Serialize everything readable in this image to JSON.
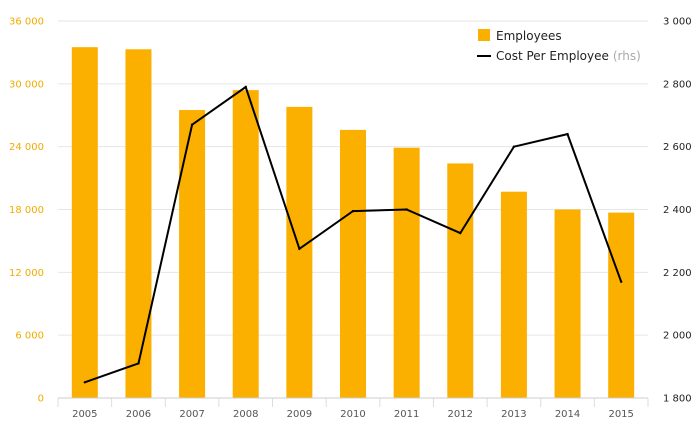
{
  "chart_data": {
    "type": "bar",
    "categories": [
      "2005",
      "2006",
      "2007",
      "2008",
      "2009",
      "2010",
      "2011",
      "2012",
      "2013",
      "2014",
      "2015"
    ],
    "series": [
      {
        "name": "Employees",
        "type": "bar",
        "axis": "left",
        "color": "#fbb000",
        "values": [
          33500,
          33300,
          27500,
          29400,
          27800,
          25600,
          23900,
          22400,
          19700,
          18000,
          17700
        ]
      },
      {
        "name": "Cost Per Employee",
        "name_suffix": "(rhs)",
        "type": "line",
        "axis": "right",
        "color": "#000000",
        "values": [
          1850,
          1910,
          2670,
          2790,
          2275,
          2395,
          2400,
          2325,
          2600,
          2640,
          2170
        ]
      }
    ],
    "y_left": {
      "range": [
        0,
        36000
      ],
      "ticks": [
        0,
        6000,
        12000,
        18000,
        24000,
        30000,
        36000
      ],
      "tick_labels": [
        "0",
        "6 000",
        "12 000",
        "18 000",
        "24 000",
        "30 000",
        "36 000"
      ],
      "color": "#f2ab00"
    },
    "y_right": {
      "range": [
        1800,
        3000
      ],
      "ticks": [
        1800,
        2000,
        2200,
        2400,
        2600,
        2800,
        3000
      ],
      "tick_labels": [
        "1 800",
        "2 000",
        "2 200",
        "2 400",
        "2 600",
        "2 800",
        "3 000"
      ]
    },
    "grid": true,
    "legend_position": "top-right"
  }
}
